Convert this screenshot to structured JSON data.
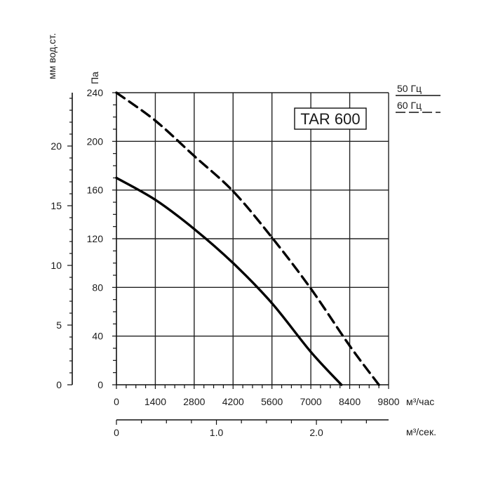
{
  "chart_data": {
    "type": "line",
    "title": "TAR 600",
    "xlabel": "м³/час",
    "x2label": "м³/сек.",
    "ylabel": "Па",
    "y2label": "мм вод.ст.",
    "xlim": [
      0,
      9800
    ],
    "ylim": [
      0,
      240
    ],
    "x2lim": [
      0,
      2.722
    ],
    "y2lim": [
      0,
      24.47
    ],
    "x_ticks": [
      0,
      1400,
      2800,
      4200,
      5600,
      7000,
      8400,
      9800
    ],
    "x_tick_labels": [
      "0",
      "1400",
      "2800",
      "4200",
      "5600",
      "7000",
      "8400",
      "9800"
    ],
    "y_ticks": [
      0,
      40,
      80,
      120,
      160,
      200,
      240
    ],
    "y_tick_labels": [
      "0",
      "40",
      "80",
      "120",
      "160",
      "200",
      "240"
    ],
    "x2_ticks": [
      0,
      1.0,
      2.0
    ],
    "x2_tick_labels": [
      "0",
      "1.0",
      "2.0"
    ],
    "y2_ticks": [
      0,
      5,
      10,
      15,
      20
    ],
    "y2_tick_labels": [
      "0",
      "5",
      "10",
      "15",
      "20"
    ],
    "grid": true,
    "legend_position": "top-right",
    "series": [
      {
        "name": "50 Гц",
        "style": "solid",
        "x": [
          0,
          1400,
          2800,
          4200,
          5600,
          7000,
          8100
        ],
        "y": [
          170,
          152,
          128,
          100,
          67,
          27,
          0
        ]
      },
      {
        "name": "60 Гц",
        "style": "dashed",
        "x": [
          0,
          1400,
          2800,
          4200,
          5600,
          7000,
          8400,
          9450
        ],
        "y": [
          240,
          217,
          188,
          159,
          121,
          79,
          32,
          0
        ]
      }
    ]
  }
}
